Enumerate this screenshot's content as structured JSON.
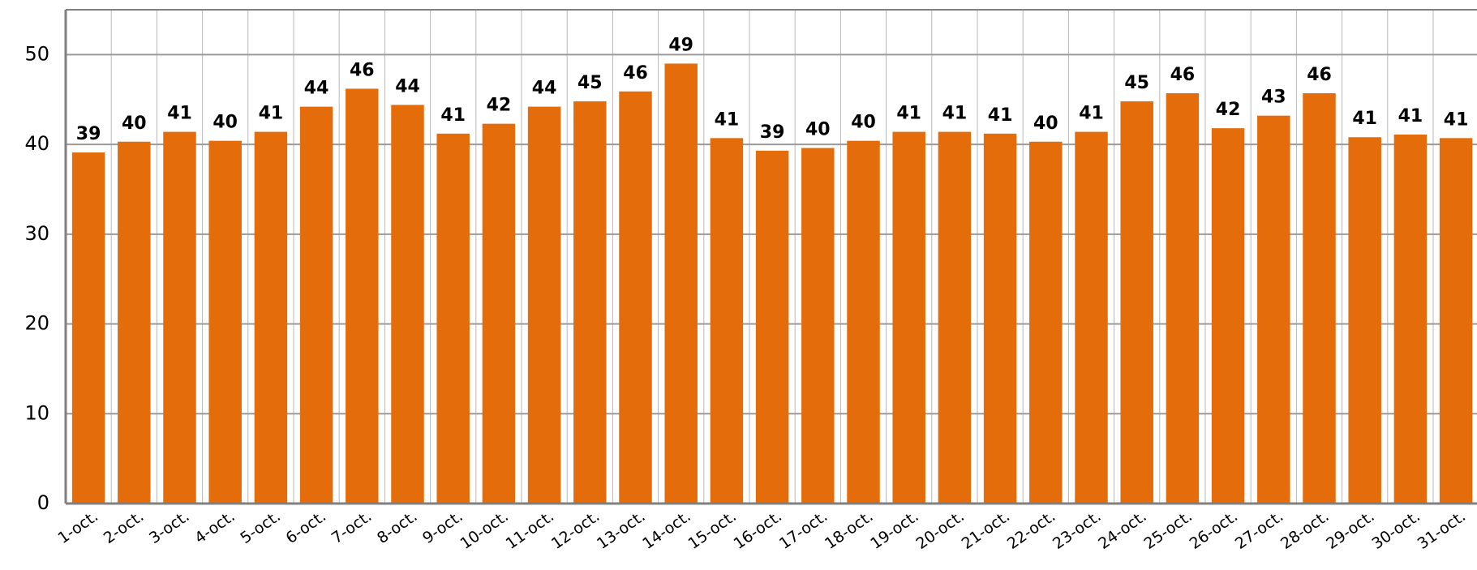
{
  "chart_data": {
    "type": "bar",
    "categories": [
      "1-oct.",
      "2-oct.",
      "3-oct.",
      "4-oct.",
      "5-oct.",
      "6-oct.",
      "7-oct.",
      "8-oct.",
      "9-oct.",
      "10-oct.",
      "11-oct.",
      "12-oct.",
      "13-oct.",
      "14-oct.",
      "15-oct.",
      "16-oct.",
      "17-oct.",
      "18-oct.",
      "19-oct.",
      "20-oct.",
      "21-oct.",
      "22-oct.",
      "23-oct.",
      "24-oct.",
      "25-oct.",
      "26-oct.",
      "27-oct.",
      "28-oct.",
      "29-oct.",
      "30-oct.",
      "31-oct."
    ],
    "values": [
      39.1,
      40.3,
      41.4,
      40.4,
      41.4,
      44.2,
      46.2,
      44.4,
      41.2,
      42.3,
      44.2,
      44.8,
      45.9,
      49.0,
      40.7,
      39.3,
      39.6,
      40.4,
      41.4,
      41.4,
      41.2,
      40.3,
      41.4,
      44.8,
      45.7,
      41.8,
      43.2,
      45.7,
      40.8,
      41.1,
      40.7
    ],
    "value_labels": [
      "39",
      "40",
      "41",
      "40",
      "41",
      "44",
      "46",
      "44",
      "41",
      "42",
      "44",
      "45",
      "46",
      "49",
      "41",
      "39",
      "40",
      "40",
      "41",
      "41",
      "41",
      "40",
      "41",
      "45",
      "46",
      "42",
      "43",
      "46",
      "41",
      "41",
      "41"
    ],
    "color": "#e46c0a",
    "ylim": [
      0,
      55
    ],
    "yticks": [
      0,
      10,
      20,
      30,
      40,
      50
    ],
    "grid": true
  }
}
